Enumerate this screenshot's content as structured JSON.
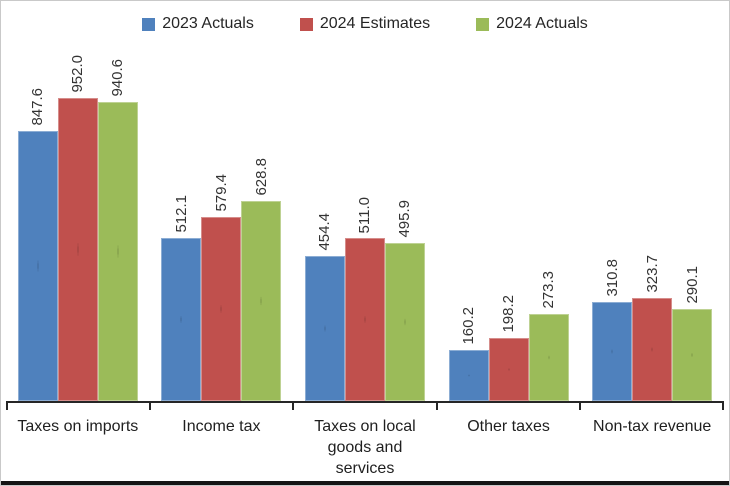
{
  "chart_data": {
    "type": "bar",
    "title": "",
    "xlabel": "",
    "ylabel": "",
    "categories": [
      "Taxes on imports",
      "Income tax",
      "Taxes on local goods and services",
      "Other taxes",
      "Non-tax revenue"
    ],
    "series": [
      {
        "name": "2023 Actuals",
        "color": "#4F81BD",
        "values": [
          847.6,
          512.1,
          454.4,
          160.2,
          310.8
        ]
      },
      {
        "name": "2024 Estimates",
        "color": "#C0504D",
        "values": [
          952.0,
          579.4,
          511.0,
          198.2,
          323.7
        ]
      },
      {
        "name": "2024 Actuals",
        "color": "#9BBB59",
        "values": [
          940.6,
          628.8,
          495.9,
          273.3,
          290.1
        ]
      }
    ],
    "ylim": [
      0,
      1070
    ],
    "grid": false,
    "legend_position": "top",
    "data_labels": "rotated-90-one-decimal",
    "axis_color": "#262626",
    "label_color": "#333333"
  }
}
